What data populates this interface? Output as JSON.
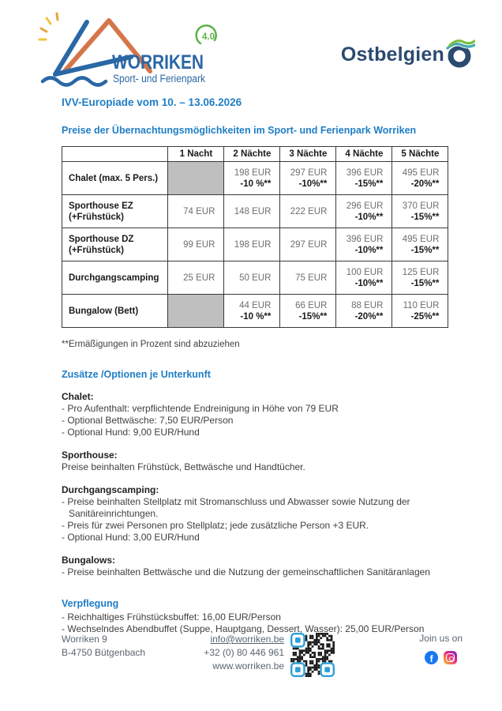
{
  "header": {
    "brand": "WORRIKEN",
    "badge": "4.0",
    "tagline": "Sport- und Ferienpark",
    "partner": "Ostbelgien"
  },
  "titles": {
    "event": "IVV-Europiade vom 10. – 13.06.2026",
    "prices": "Preise der Übernachtungsmöglichkeiten im Sport- und Ferienpark Worriken"
  },
  "price_table": {
    "columns": [
      "",
      "1 Nacht",
      "2 Nächte",
      "3 Nächte",
      "4 Nächte",
      "5 Nächte"
    ],
    "rows": [
      {
        "label_lines": [
          "Chalet (max. 5 Pers.)"
        ],
        "cells": [
          {
            "shaded": true
          },
          {
            "price": "198 EUR",
            "discount": "-10 %**"
          },
          {
            "price": "297 EUR",
            "discount": "-10%**"
          },
          {
            "price": "396 EUR",
            "discount": "-15%**"
          },
          {
            "price": "495 EUR",
            "discount": "-20%**"
          }
        ]
      },
      {
        "label_lines": [
          "Sporthouse EZ",
          "(+Frühstück)"
        ],
        "cells": [
          {
            "price": "74 EUR"
          },
          {
            "price": "148 EUR"
          },
          {
            "price": "222 EUR"
          },
          {
            "price": "296 EUR",
            "discount": "-10%**"
          },
          {
            "price": "370 EUR",
            "discount": "-15%**"
          }
        ]
      },
      {
        "label_lines": [
          "Sporthouse DZ",
          "(+Frühstück)"
        ],
        "cells": [
          {
            "price": "99 EUR"
          },
          {
            "price": "198 EUR"
          },
          {
            "price": "297 EUR"
          },
          {
            "price": "396 EUR",
            "discount": "-10%**"
          },
          {
            "price": "495 EUR",
            "discount": "-15%**"
          }
        ]
      },
      {
        "label_lines": [
          "Durchgangscamping"
        ],
        "cells": [
          {
            "price": "25 EUR"
          },
          {
            "price": "50 EUR"
          },
          {
            "price": "75 EUR"
          },
          {
            "price": "100 EUR",
            "discount": "-10%**"
          },
          {
            "price": "125 EUR",
            "discount": "-15%**"
          }
        ]
      },
      {
        "label_lines": [
          "Bungalow (Bett)"
        ],
        "cells": [
          {
            "shaded": true
          },
          {
            "price": "44 EUR",
            "discount": "-10 %**"
          },
          {
            "price": "66 EUR",
            "discount": "-15%**"
          },
          {
            "price": "88 EUR",
            "discount": "-20%**"
          },
          {
            "price": "110 EUR",
            "discount": "-25%**"
          }
        ]
      }
    ]
  },
  "footnote": "**Ermäßigungen in Prozent sind abzuziehen",
  "options": {
    "heading": "Zusätze /Optionen je Unterkunft",
    "sections": [
      {
        "title": "Chalet:",
        "lines": [
          "- Pro Aufenthalt: verpflichtende Endreinigung in Höhe von 79 EUR",
          "- Optional Bettwäsche: 7,50 EUR/Person",
          "- Optional Hund: 9,00 EUR/Hund"
        ]
      },
      {
        "title": "Sporthouse:",
        "lines": [
          "Preise beinhalten Frühstück, Bettwäsche und Handtücher."
        ]
      },
      {
        "title": "Durchgangscamping:",
        "lines": [
          "- Preise beinhalten Stellplatz mit Stromanschluss und Abwasser sowie Nutzung der Sanitäreinrichtungen.",
          "- Preis für zwei Personen pro Stellplatz; jede zusätzliche Person +3 EUR.",
          "- Optional Hund: 3,00 EUR/Hund"
        ]
      },
      {
        "title": "Bungalows:",
        "lines": [
          "- Preise beinhalten Bettwäsche und die Nutzung der gemeinschaftlichen Sanitäranlagen"
        ]
      }
    ]
  },
  "catering": {
    "heading": "Verpflegung",
    "lines": [
      "- Reichhaltiges Frühstücksbuffet: 16,00 EUR/Person",
      "- Wechselndes Abendbuffet (Suppe, Hauptgang, Dessert, Wasser): 25,00 EUR/Person"
    ]
  },
  "footer": {
    "address_line1": "Worriken 9",
    "address_line2": "B-4750 Bütgenbach",
    "email": "info@worriken.be",
    "phone": "+32 (0) 80 446 961",
    "website": "www.worriken.be",
    "social_label": "Join us on",
    "facebook_glyph": "f"
  },
  "colors": {
    "accent_blue": "#1f7ec6",
    "logo_blue": "#2a67a5",
    "logo_orange": "#d5764a",
    "sun_orange": "#e9a33b",
    "badge_green": "#5cb249",
    "ostbelgien_navy": "#2b4a70",
    "wave_teal": "#45a8b4",
    "wave_green": "#7ac143",
    "shaded_cell": "#bfbfbf",
    "facebook_blue": "#1877f2",
    "qr_finder_blue": "#2f9fd6"
  }
}
